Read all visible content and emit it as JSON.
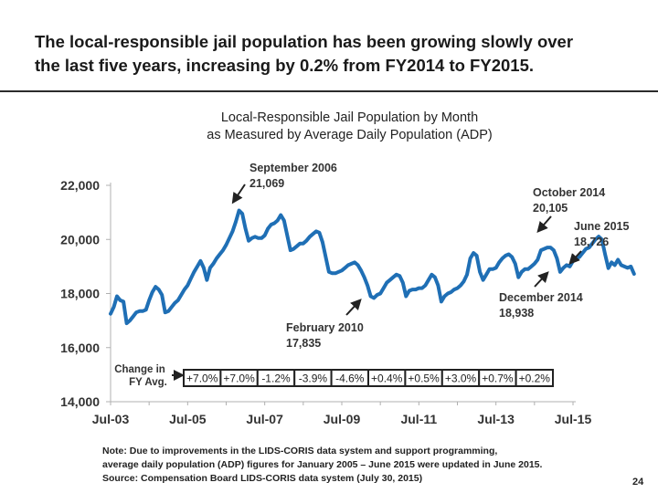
{
  "headline": {
    "line1": "The local-responsible jail population has been growing slowly over",
    "line2": "the last five years, increasing by 0.2% from FY2014 to  FY2015."
  },
  "chart_title": {
    "line1": "Local-Responsible Jail Population by Month",
    "line2": "as Measured by Average Daily Population (ADP)"
  },
  "chart_data": {
    "type": "line",
    "title": "Local-Responsible Jail Population by Month as Measured by Average Daily Population (ADP)",
    "xlabel": "",
    "ylabel": "",
    "ylim": [
      14000,
      22000
    ],
    "yticks": [
      14000,
      16000,
      18000,
      20000,
      22000
    ],
    "ytick_labels": [
      "14,000",
      "16,000",
      "18,000",
      "20,000",
      "22,000"
    ],
    "xlim": [
      "2003-07",
      "2015-07"
    ],
    "xtick_labels": [
      "Jul-03",
      "Jul-05",
      "Jul-07",
      "Jul-09",
      "Jul-11",
      "Jul-13",
      "Jul-15"
    ],
    "grid": false,
    "color": "#1f6fb5",
    "start_month": "2003-07",
    "series": [
      {
        "name": "Local-Responsible Jail ADP",
        "values": [
          17250,
          17500,
          17900,
          17750,
          17700,
          16900,
          17000,
          17150,
          17300,
          17350,
          17350,
          17400,
          17750,
          18050,
          18250,
          18150,
          17950,
          17300,
          17350,
          17500,
          17650,
          17750,
          17950,
          18150,
          18300,
          18550,
          18800,
          19000,
          19200,
          18950,
          18500,
          18950,
          19100,
          19300,
          19450,
          19600,
          19800,
          20050,
          20300,
          20650,
          21069,
          20950,
          20400,
          19950,
          20050,
          20100,
          20050,
          20050,
          20150,
          20400,
          20550,
          20600,
          20700,
          20900,
          20700,
          20150,
          19600,
          19650,
          19750,
          19850,
          19850,
          19950,
          20100,
          20200,
          20300,
          20250,
          19900,
          19350,
          18800,
          18750,
          18750,
          18800,
          18850,
          18950,
          19050,
          19100,
          19150,
          19050,
          18850,
          18600,
          18300,
          17900,
          17835,
          17950,
          18000,
          18200,
          18400,
          18500,
          18600,
          18700,
          18650,
          18400,
          17900,
          18100,
          18150,
          18150,
          18200,
          18200,
          18300,
          18500,
          18700,
          18600,
          18300,
          17700,
          17900,
          18000,
          18050,
          18150,
          18200,
          18300,
          18450,
          18700,
          19300,
          19500,
          19400,
          18800,
          18500,
          18700,
          18900,
          18900,
          18950,
          19150,
          19300,
          19400,
          19450,
          19350,
          19100,
          18600,
          18800,
          18900,
          18900,
          19000,
          19100,
          19250,
          19600,
          19650,
          19700,
          19700,
          19600,
          19300,
          18800,
          18950,
          19050,
          19000,
          19200,
          19300,
          19350,
          19500,
          19650,
          19700,
          19850,
          20000,
          20105,
          20000,
          19450,
          18938,
          19150,
          19050,
          19250,
          19050,
          19000,
          18950,
          19000,
          18726
        ]
      }
    ],
    "annotations": [
      {
        "label": "September 2006",
        "value": "21,069"
      },
      {
        "label": "February 2010",
        "value": "17,835"
      },
      {
        "label": "October 2014",
        "value": "20,105"
      },
      {
        "label": "December 2014",
        "value": "18,938"
      },
      {
        "label": "June 2015",
        "value": "18,726"
      }
    ],
    "fy_change": {
      "label_line1": "Change in",
      "label_line2": "FY Avg.",
      "values": [
        "+7.0%",
        "+7.0%",
        "-1.2%",
        "-3.9%",
        "-4.6%",
        "+0.4%",
        "+0.5%",
        "+3.0%",
        "+0.7%",
        "+0.2%"
      ]
    }
  },
  "note": {
    "line1": "Note:  Due to improvements in the LIDS-CORIS data system and support programming,",
    "line2": "average daily population (ADP) figures for January 2005 – June 2015 were updated in June 2015.",
    "line3": "Source:   Compensation Board LIDS-CORIS data system (July 30, 2015)"
  },
  "page_number": "24"
}
